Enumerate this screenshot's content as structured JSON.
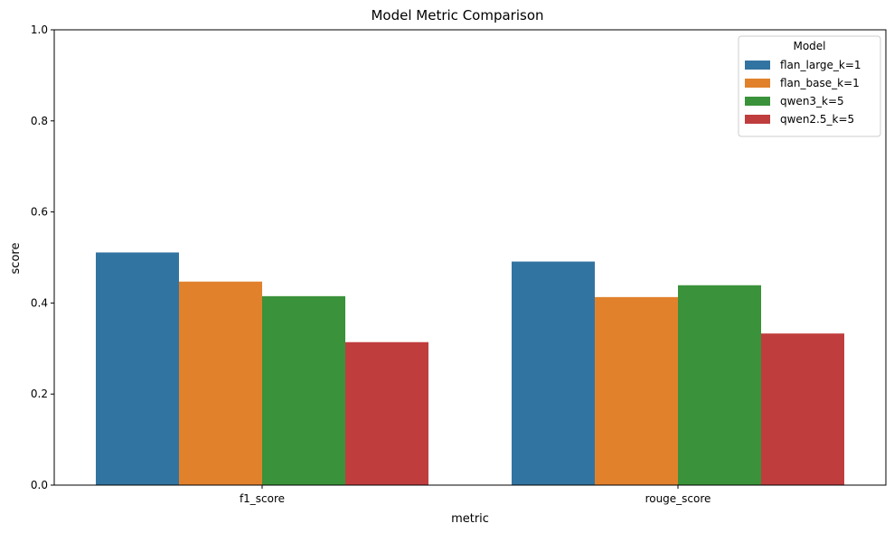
{
  "chart_data": {
    "type": "bar",
    "title": "Model Metric Comparison",
    "xlabel": "metric",
    "ylabel": "score",
    "categories": [
      "f1_score",
      "rouge_score"
    ],
    "ylim": [
      0,
      1.0
    ],
    "yticks": [
      "0.0",
      "0.2",
      "0.4",
      "0.6",
      "0.8",
      "1.0"
    ],
    "grid": false,
    "legend": {
      "title": "Model",
      "placement": "top-right"
    },
    "series": [
      {
        "name": "flan_large_k=1",
        "color": "#3274a1",
        "values": [
          0.511,
          0.491
        ]
      },
      {
        "name": "flan_base_k=1",
        "color": "#e1812c",
        "values": [
          0.447,
          0.413
        ]
      },
      {
        "name": "qwen3_k=5",
        "color": "#3a923a",
        "values": [
          0.415,
          0.439
        ]
      },
      {
        "name": "qwen2.5_k=5",
        "color": "#c03d3e",
        "values": [
          0.314,
          0.333
        ]
      }
    ]
  }
}
